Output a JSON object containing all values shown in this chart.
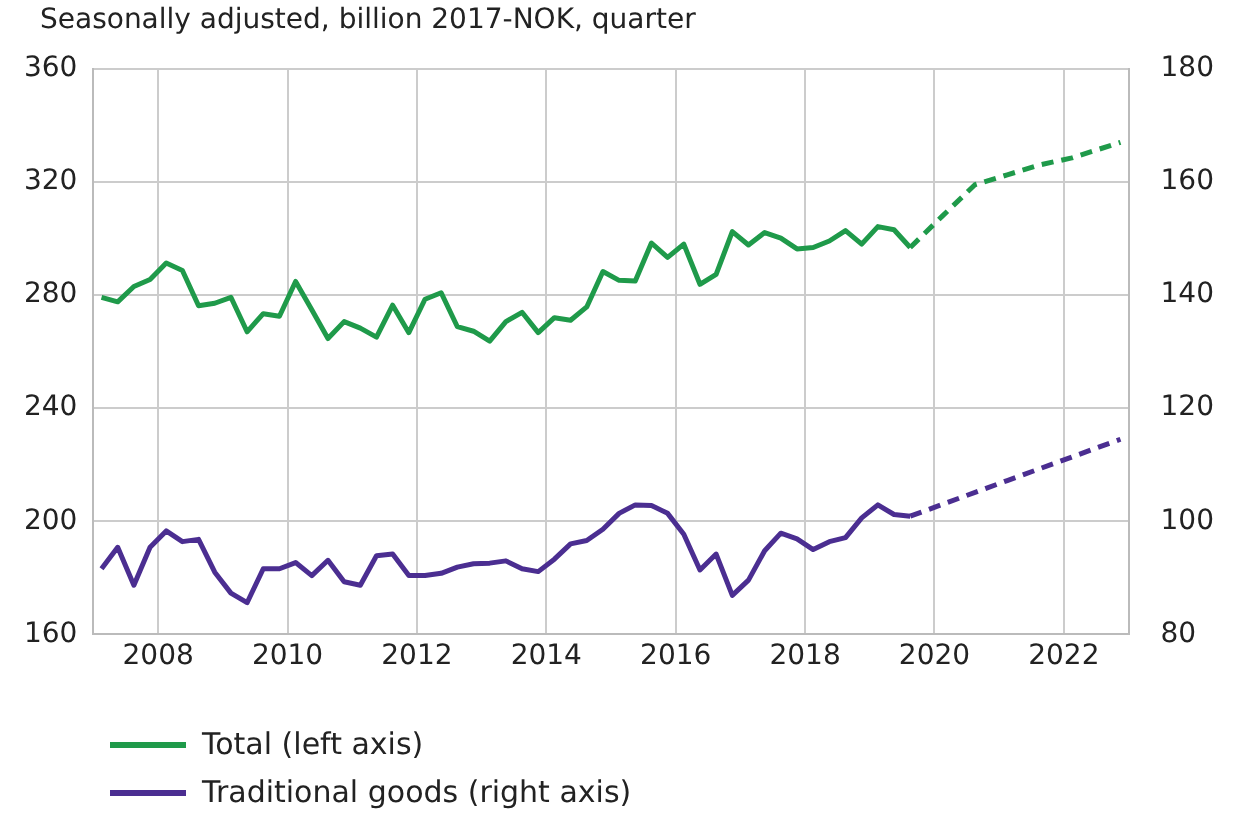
{
  "chart_data": {
    "type": "line",
    "subtitle": "Seasonally adjusted, billion 2017-NOK, quarter",
    "xlim": [
      2007,
      2023
    ],
    "xticks": [
      2008,
      2010,
      2012,
      2014,
      2016,
      2018,
      2020,
      2022
    ],
    "ylim": [
      160,
      360
    ],
    "yticks": [
      160,
      200,
      240,
      280,
      320,
      360
    ],
    "y2lim": [
      80,
      180
    ],
    "y2ticks": [
      80,
      100,
      120,
      140,
      160,
      180
    ],
    "grid": true,
    "legend": "bottom",
    "marker": "none",
    "series": [
      {
        "name": "Total (left axis)",
        "color": "#1f9a4a",
        "axis": "y",
        "line_style": "solid",
        "values": [
          279.2,
          277.6,
          283,
          285.5,
          291.3,
          288.7,
          276.2,
          277.1,
          279.2,
          267,
          273.4,
          272.5,
          284.8,
          274.8,
          264.6,
          270.6,
          268.3,
          265.1,
          276.4,
          266.7,
          278.5,
          280.8,
          268.8,
          267.2,
          263.7,
          270.6,
          273.9,
          266.7,
          272,
          271.1,
          275.8,
          288.3,
          285.2,
          285,
          298.4,
          293.3,
          298,
          283.8,
          287.3,
          302.4,
          297.7,
          302.1,
          300.1,
          296.3,
          296.8,
          299.1,
          302.8,
          298,
          304.2,
          303.1,
          296.8
        ]
      },
      {
        "color": "#1f9a4a",
        "axis": "y",
        "line_style": "dashed",
        "x": [
          2019.625,
          2020.125,
          2020.625,
          2021.125,
          2021.625,
          2022.125,
          2022.875
        ],
        "values": [
          296.8,
          308,
          319,
          322.5,
          326,
          328.5,
          334
        ]
      },
      {
        "name": "Traditional goods (right axis)",
        "color": "#4b2e91",
        "axis": "y2",
        "line_style": "solid",
        "values": [
          91.6,
          95.4,
          88.7,
          95.4,
          98.3,
          96.4,
          96.8,
          91,
          87.3,
          85.6,
          91.6,
          91.6,
          92.7,
          90.4,
          93.1,
          89.3,
          88.7,
          93.9,
          94.2,
          90.4,
          90.4,
          90.8,
          91.9,
          92.5,
          92.6,
          93,
          91.6,
          91.1,
          93.3,
          96,
          96.6,
          98.6,
          101.4,
          102.9,
          102.8,
          101.4,
          97.7,
          91.4,
          94.2,
          86.9,
          89.6,
          94.8,
          97.9,
          96.9,
          95,
          96.4,
          97.1,
          100.6,
          102.9,
          101.2,
          100.9
        ]
      },
      {
        "color": "#4b2e91",
        "axis": "y2",
        "line_style": "dashed",
        "x": [
          2019.625,
          2021.125,
          2022.875
        ],
        "values": [
          100.9,
          107.2,
          114.5
        ]
      }
    ],
    "x": [
      2007.125,
      2007.375,
      2007.625,
      2007.875,
      2008.125,
      2008.375,
      2008.625,
      2008.875,
      2009.125,
      2009.375,
      2009.625,
      2009.875,
      2010.125,
      2010.375,
      2010.625,
      2010.875,
      2011.125,
      2011.375,
      2011.625,
      2011.875,
      2012.125,
      2012.375,
      2012.625,
      2012.875,
      2013.125,
      2013.375,
      2013.625,
      2013.875,
      2014.125,
      2014.375,
      2014.625,
      2014.875,
      2015.125,
      2015.375,
      2015.625,
      2015.875,
      2016.125,
      2016.375,
      2016.625,
      2016.875,
      2017.125,
      2017.375,
      2017.625,
      2017.875,
      2018.125,
      2018.375,
      2018.625,
      2018.875,
      2019.125,
      2019.375,
      2019.625
    ]
  }
}
